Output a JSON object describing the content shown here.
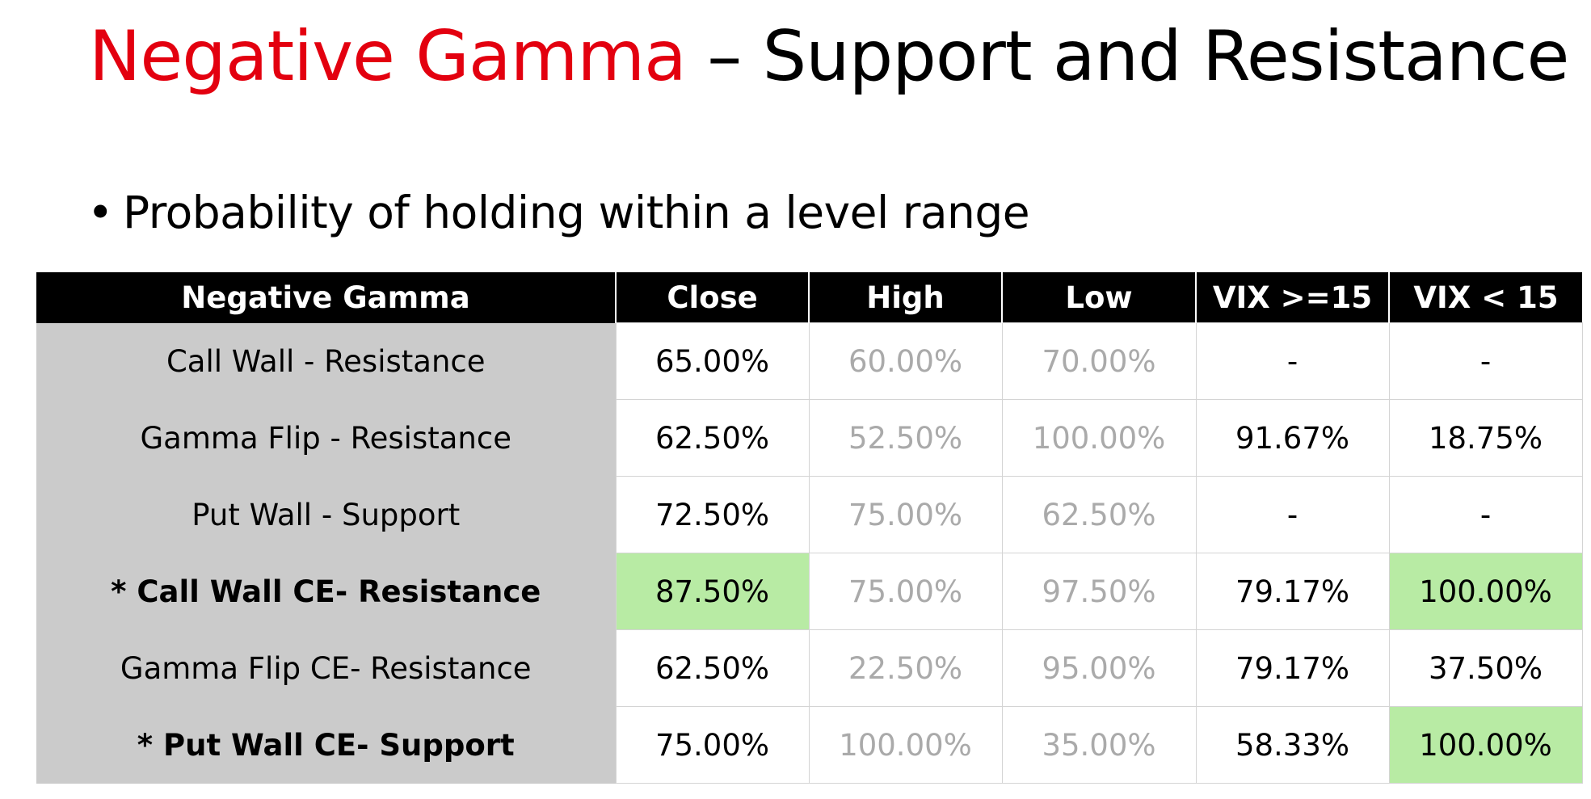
{
  "title": {
    "accent": "Negative Gamma",
    "rest": " – Support and Resistance"
  },
  "bullet": {
    "symbol": "•",
    "text": "Probability of holding within a level range"
  },
  "table": {
    "headers": [
      "Negative Gamma",
      "Close",
      "High",
      "Low",
      "VIX >=15",
      "VIX < 15"
    ],
    "rows": [
      {
        "label": "Call Wall - Resistance",
        "bold": false,
        "cells": [
          "65.00%",
          "60.00%",
          "70.00%",
          "-",
          "-"
        ],
        "highlight": [
          false,
          false,
          false,
          false,
          false
        ]
      },
      {
        "label": "Gamma Flip - Resistance",
        "bold": false,
        "cells": [
          "62.50%",
          "52.50%",
          "100.00%",
          "91.67%",
          "18.75%"
        ],
        "highlight": [
          false,
          false,
          false,
          false,
          false
        ]
      },
      {
        "label": "Put Wall - Support",
        "bold": false,
        "cells": [
          "72.50%",
          "75.00%",
          "62.50%",
          "-",
          "-"
        ],
        "highlight": [
          false,
          false,
          false,
          false,
          false
        ]
      },
      {
        "label": "* Call Wall CE- Resistance",
        "bold": true,
        "cells": [
          "87.50%",
          "75.00%",
          "97.50%",
          "79.17%",
          "100.00%"
        ],
        "highlight": [
          true,
          false,
          false,
          false,
          true
        ]
      },
      {
        "label": "Gamma Flip CE- Resistance",
        "bold": false,
        "cells": [
          "62.50%",
          "22.50%",
          "95.00%",
          "79.17%",
          "37.50%"
        ],
        "highlight": [
          false,
          false,
          false,
          false,
          false
        ]
      },
      {
        "label": "* Put Wall CE- Support",
        "bold": true,
        "cells": [
          "75.00%",
          "100.00%",
          "35.00%",
          "58.33%",
          "100.00%"
        ],
        "highlight": [
          false,
          false,
          false,
          false,
          true
        ]
      }
    ]
  },
  "colors": {
    "accent": "#e3000f",
    "header_bg": "#000000",
    "label_bg": "#cbcbcb",
    "highlight": "#b8eba4",
    "muted_text": "#aaaaaa"
  }
}
